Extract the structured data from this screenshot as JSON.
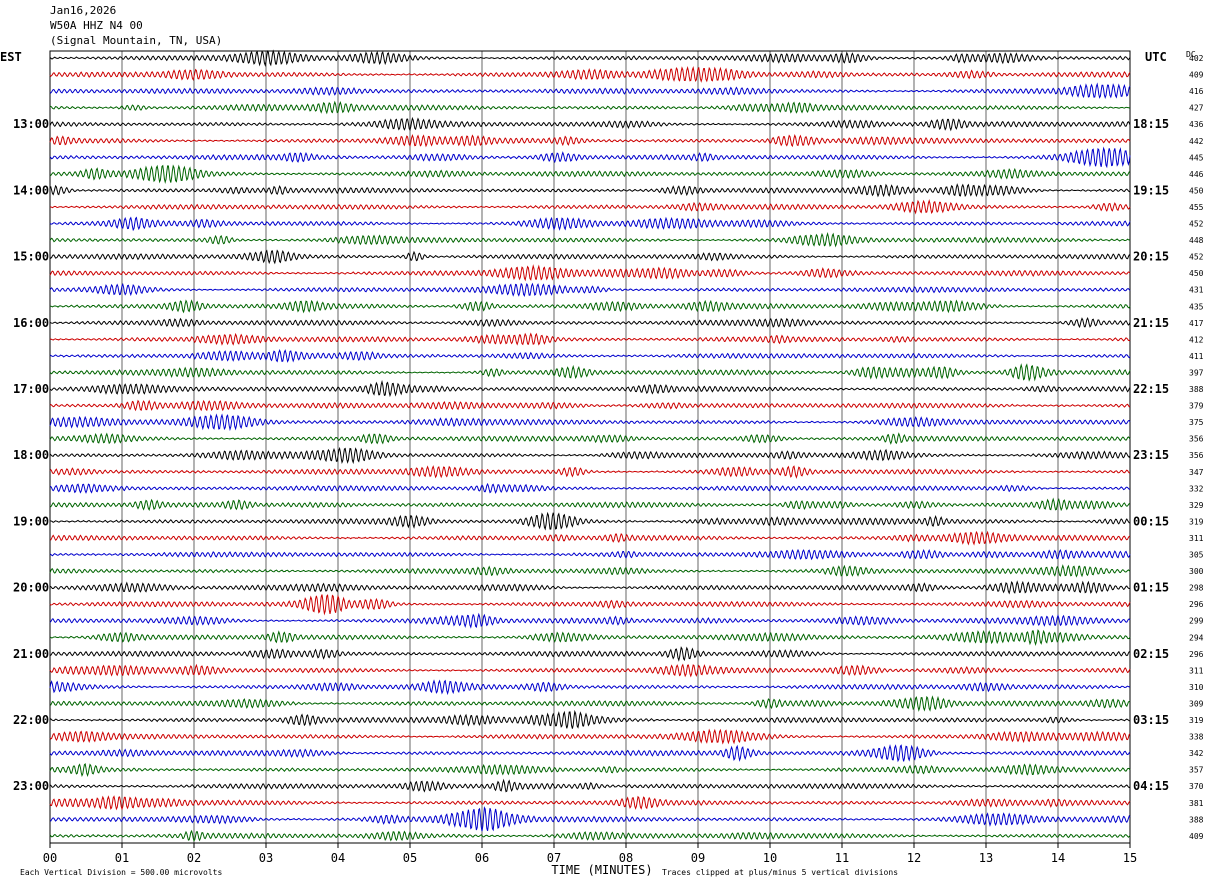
{
  "header": {
    "date": "Jan16,2026",
    "channel": "W50A HHZ N4 00",
    "location": "(Signal Mountain, TN, USA)"
  },
  "chart_data": {
    "type": "line",
    "subtype": "helicorder",
    "left_timezone": "EST",
    "right_timezone": "UTC",
    "dc_label": "DC",
    "xlabel": "TIME (MINUTES)",
    "x_ticks": [
      "00",
      "01",
      "02",
      "03",
      "04",
      "05",
      "06",
      "07",
      "08",
      "09",
      "10",
      "11",
      "12",
      "13",
      "14",
      "15"
    ],
    "xlim": [
      0,
      15
    ],
    "rows_per_hour": 4,
    "row_colors": [
      "#000000",
      "#cc0000",
      "#0000cc",
      "#006400"
    ],
    "hour_labels_left": [
      "13:00",
      "14:00",
      "15:00",
      "16:00",
      "17:00",
      "18:00",
      "19:00",
      "20:00",
      "21:00",
      "22:00",
      "23:00"
    ],
    "hour_labels_right": [
      "18:15",
      "19:15",
      "20:15",
      "21:15",
      "22:15",
      "23:15",
      "00:15",
      "01:15",
      "02:15",
      "03:15",
      "04:15"
    ],
    "dc_offsets": [
      402,
      409,
      416,
      427,
      436,
      442,
      445,
      446,
      450,
      455,
      452,
      448,
      452,
      450,
      431,
      435,
      417,
      412,
      411,
      397,
      388,
      379,
      375,
      356,
      356,
      347,
      332,
      329,
      319,
      311,
      305,
      300,
      298,
      296,
      299,
      294,
      296,
      311,
      310,
      309,
      319,
      338,
      342,
      357,
      370,
      381,
      388,
      409
    ],
    "footer_left": "Each Vertical Division =  500.00 microvolts",
    "footer_right": "Traces clipped at plus/minus 5 vertical divisions"
  }
}
